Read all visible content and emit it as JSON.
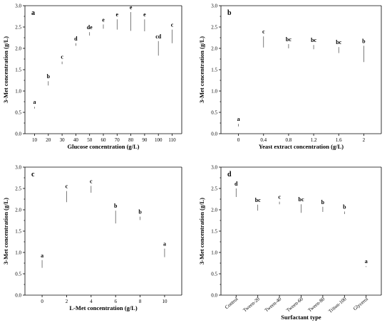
{
  "colors": {
    "highlight": "#33f5b6",
    "normal": "#fdc89b"
  },
  "chart_data": [
    {
      "panel": "a",
      "type": "bar",
      "xlabel": "Glucose concentration (g/L)",
      "ylabel": "3-Met concentration (g/L)",
      "ylim": [
        0,
        3.0
      ],
      "yticks": [
        "0.0",
        "0.5",
        "1.0",
        "1.5",
        "2.0",
        "2.5",
        "3.0"
      ],
      "categories": [
        "10",
        "20",
        "30",
        "40",
        "50",
        "60",
        "70",
        "80",
        "90",
        "100",
        "110"
      ],
      "values": [
        0.61,
        1.18,
        1.66,
        2.09,
        2.34,
        2.51,
        2.56,
        2.63,
        2.54,
        2.0,
        2.28
      ],
      "errors": [
        0.02,
        0.05,
        0.03,
        0.03,
        0.04,
        0.05,
        0.12,
        0.22,
        0.14,
        0.17,
        0.16
      ],
      "significance": [
        "a",
        "b",
        "c",
        "d",
        "de",
        "e",
        "e",
        "e",
        "e",
        "cd",
        "c"
      ],
      "highlight": [
        false,
        false,
        false,
        false,
        false,
        true,
        true,
        true,
        true,
        false,
        false
      ],
      "rotate_ticks": false
    },
    {
      "panel": "b",
      "type": "bar",
      "xlabel": "Yeast extract concentration (g/L)",
      "ylabel": "3-Met concentration (g/L)",
      "ylim": [
        0,
        3.0
      ],
      "yticks": [
        "0.0",
        "0.5",
        "1.0",
        "1.5",
        "2.0",
        "2.5",
        "3.0"
      ],
      "categories": [
        "0",
        "0.4",
        "0.8",
        "1.2",
        "1.6",
        "2"
      ],
      "values": [
        0.2,
        2.15,
        2.05,
        2.03,
        1.96,
        1.87
      ],
      "errors": [
        0.03,
        0.13,
        0.05,
        0.05,
        0.07,
        0.19
      ],
      "significance": [
        "a",
        "c",
        "bc",
        "bc",
        "bc",
        "b"
      ],
      "highlight": [
        false,
        true,
        false,
        false,
        false,
        false
      ],
      "rotate_ticks": false
    },
    {
      "panel": "c",
      "type": "bar",
      "xlabel": "L-Met concentration (g/L)",
      "ylabel": "3-Met concentration (g/L)",
      "ylim": [
        0,
        3.0
      ],
      "yticks": [
        "0.0",
        "0.5",
        "1.0",
        "1.5",
        "2.0",
        "2.5",
        "3.0"
      ],
      "categories": [
        "0",
        "2",
        "4",
        "6",
        "8",
        "10"
      ],
      "values": [
        0.73,
        2.31,
        2.48,
        1.83,
        1.8,
        0.99
      ],
      "errors": [
        0.09,
        0.13,
        0.08,
        0.15,
        0.04,
        0.1
      ],
      "significance": [
        "a",
        "c",
        "c",
        "b",
        "b",
        "a"
      ],
      "highlight": [
        false,
        true,
        true,
        false,
        false,
        false
      ],
      "rotate_ticks": false
    },
    {
      "panel": "d",
      "type": "bar",
      "xlabel": "Surfactant type",
      "ylabel": "3-Met concentration (g/L)",
      "ylim": [
        0,
        3.0
      ],
      "yticks": [
        "0.0",
        "0.5",
        "1.0",
        "1.5",
        "2.0",
        "2.5",
        "3.0"
      ],
      "categories": [
        "Control",
        "Tween-20",
        "Tween-40",
        "Tween-60",
        "Tween-80",
        "Triton-100",
        "Glycerol"
      ],
      "values": [
        2.4,
        2.05,
        2.16,
        2.03,
        2.01,
        1.93,
        0.67
      ],
      "errors": [
        0.1,
        0.07,
        0.03,
        0.1,
        0.06,
        0.03,
        0.01
      ],
      "significance": [
        "d",
        "bc",
        "c",
        "bc",
        "b",
        "b",
        "a"
      ],
      "highlight": [
        true,
        false,
        false,
        false,
        false,
        false,
        false
      ],
      "rotate_ticks": true
    }
  ]
}
